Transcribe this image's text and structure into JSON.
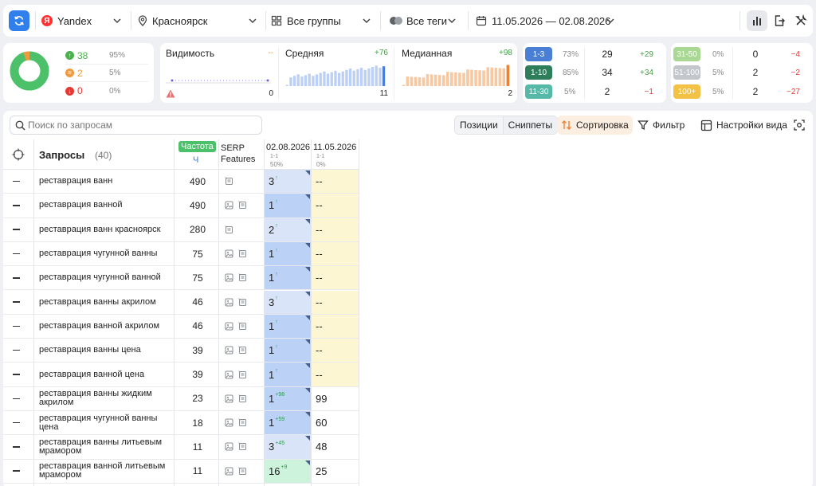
{
  "toolbar": {
    "engine": "Yandex",
    "engine_badge": "Я",
    "region": "Красноярск",
    "groups": "Все группы",
    "tags": "Все теги",
    "dates": "11.05.2026 — 02.08.2026",
    "icons": [
      "refresh-icon",
      "map-pin-icon",
      "grid-icon",
      "tags-icon",
      "calendar-icon",
      "chart-icon",
      "export-icon",
      "tools-icon"
    ]
  },
  "summary": {
    "rows": [
      {
        "count": "38",
        "pct": "95%",
        "color": "#4caf50",
        "icon": "arrow-up-icon"
      },
      {
        "count": "2",
        "pct": "5%",
        "color": "#ef9a3c",
        "icon": "equal-icon"
      },
      {
        "count": "0",
        "pct": "0%",
        "color": "#e53935",
        "icon": "arrow-down-icon"
      }
    ],
    "donut": {
      "green": 0.95,
      "orange": 0.05
    }
  },
  "metrics": [
    {
      "label": "Видимость",
      "delta": "--",
      "delta_color": "#ef9a3c",
      "value": "0",
      "warn": true
    },
    {
      "label": "Средняя",
      "delta": "+76",
      "delta_color": "#43a047",
      "value": "11"
    },
    {
      "label": "Медианная",
      "delta": "+98",
      "delta_color": "#43a047",
      "value": "2"
    }
  ],
  "ranges_left": [
    {
      "label": "1-3",
      "pct": "73%",
      "count": "29",
      "delta": "+29",
      "badge": "#4a7fd6",
      "delta_color": "#43a047"
    },
    {
      "label": "1-10",
      "pct": "85%",
      "count": "34",
      "delta": "+34",
      "badge": "#2e7d5b",
      "delta_color": "#43a047"
    },
    {
      "label": "11-30",
      "pct": "5%",
      "count": "2",
      "delta": "−1",
      "badge": "#56b8a6",
      "delta_color": "#e53935"
    }
  ],
  "ranges_right": [
    {
      "label": "31-50",
      "pct": "0%",
      "count": "0",
      "delta": "−4",
      "badge": "#a8d891",
      "delta_color": "#e53935"
    },
    {
      "label": "51-100",
      "pct": "5%",
      "count": "2",
      "delta": "−2",
      "badge": "#c3c6cb",
      "delta_color": "#e53935"
    },
    {
      "label": "100+",
      "pct": "5%",
      "count": "2",
      "delta": "−27",
      "badge": "#f3c244",
      "delta_color": "#e53935"
    }
  ],
  "panel": {
    "search_placeholder": "Поиск по запросам",
    "seg_positions": "Позиции",
    "seg_snippets": "Сниппеты",
    "sort": "Сортировка",
    "filter": "Фильтр",
    "view_settings": "Настройки вида"
  },
  "table": {
    "queries_label": "Запросы",
    "queries_count": "(40)",
    "freq_badge": "Частота",
    "freq_sub": "Ч",
    "serp_label_1": "SERP",
    "serp_label_2": "Features",
    "date1": "02.08.2026",
    "date1_sub": "1-1",
    "date1_pct": "50%",
    "date2": "11.05.2026",
    "date2_sub": "1-1",
    "date2_pct": "0%",
    "rows": [
      {
        "q": "реставрация ванн",
        "f": "490",
        "img": false,
        "p1": "3",
        "d1": "↑",
        "p2": "--",
        "bg1": "#d9e4f8",
        "bg2": "#fdf6d3"
      },
      {
        "q": "реставрация ванной",
        "f": "490",
        "img": true,
        "p1": "1",
        "d1": "↑",
        "p2": "--",
        "bg1": "#bcd1f6",
        "bg2": "#fdf6d3"
      },
      {
        "q": "реставрация ванн красноярск",
        "f": "280",
        "img": false,
        "p1": "2",
        "d1": "↑",
        "p2": "--",
        "bg1": "#d9e4f8",
        "bg2": "#fdf6d3"
      },
      {
        "q": "реставрация чугунной ванны",
        "f": "75",
        "img": true,
        "p1": "1",
        "d1": "↑",
        "p2": "--",
        "bg1": "#bcd1f6",
        "bg2": "#fdf6d3"
      },
      {
        "q": "реставрация чугунной ванной",
        "f": "75",
        "img": true,
        "p1": "1",
        "d1": "↑",
        "p2": "--",
        "bg1": "#bcd1f6",
        "bg2": "#fdf6d3"
      },
      {
        "q": "реставрация ванны акрилом",
        "f": "46",
        "img": true,
        "p1": "3",
        "d1": "↑",
        "p2": "--",
        "bg1": "#d9e4f8",
        "bg2": "#fdf6d3"
      },
      {
        "q": "реставрация ванной акрилом",
        "f": "46",
        "img": true,
        "p1": "1",
        "d1": "↑",
        "p2": "--",
        "bg1": "#bcd1f6",
        "bg2": "#fdf6d3"
      },
      {
        "q": "реставрация ванны цена",
        "f": "39",
        "img": true,
        "p1": "1",
        "d1": "↑",
        "p2": "--",
        "bg1": "#bcd1f6",
        "bg2": "#fdf6d3"
      },
      {
        "q": "реставрация ванной цена",
        "f": "39",
        "img": true,
        "p1": "1",
        "d1": "↑",
        "p2": "--",
        "bg1": "#bcd1f6",
        "bg2": "#fdf6d3"
      },
      {
        "q": "реставрация ванны жидким акрилом",
        "f": "23",
        "img": true,
        "p1": "1",
        "d1": "+98",
        "p2": "99",
        "bg1": "#bcd1f6",
        "bg2": "#ffffff"
      },
      {
        "q": "реставрация чугунной ванны цена",
        "f": "18",
        "img": true,
        "p1": "1",
        "d1": "+59",
        "p2": "60",
        "bg1": "#bcd1f6",
        "bg2": "#ffffff"
      },
      {
        "q": "реставрация ванны литьевым мрамором",
        "f": "11",
        "img": true,
        "p1": "3",
        "d1": "+45",
        "p2": "48",
        "bg1": "#d9e4f8",
        "bg2": "#ffffff"
      },
      {
        "q": "реставрация ванной литьевым мрамором",
        "f": "11",
        "img": true,
        "p1": "16",
        "d1": "+9",
        "p2": "25",
        "bg1": "#cdf3dc",
        "bg2": "#ffffff"
      }
    ]
  }
}
